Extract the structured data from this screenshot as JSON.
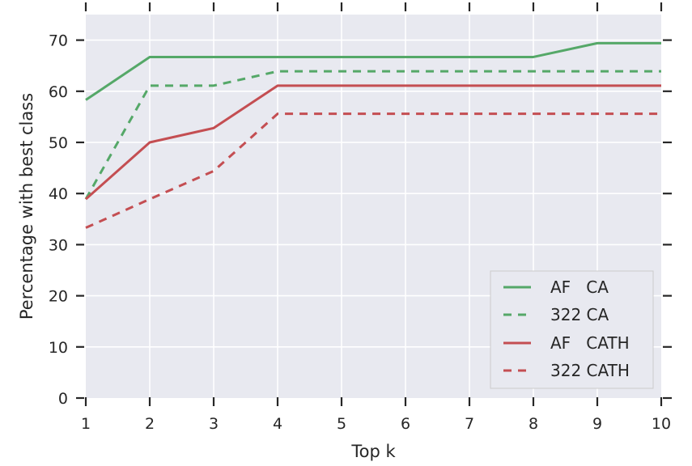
{
  "chart_data": {
    "type": "line",
    "title": "",
    "xlabel": "Top k",
    "ylabel": "Percentage with best class",
    "x": [
      1,
      2,
      3,
      4,
      5,
      6,
      7,
      8,
      9,
      10
    ],
    "xlim": [
      1,
      10
    ],
    "ylim": [
      0,
      75
    ],
    "xticks": [
      1,
      2,
      3,
      4,
      5,
      6,
      7,
      8,
      9,
      10
    ],
    "yticks": [
      0,
      10,
      20,
      30,
      40,
      50,
      60,
      70
    ],
    "grid": true,
    "legend_position": "bottom-right",
    "background": "#e8e9f0",
    "series": [
      {
        "name": "AF   CA",
        "color": "#55a868",
        "dash": "solid",
        "values": [
          58.3,
          66.7,
          66.7,
          66.7,
          66.7,
          66.7,
          66.7,
          66.7,
          69.4,
          69.4
        ]
      },
      {
        "name": "322 CA",
        "color": "#55a868",
        "dash": "dashed",
        "values": [
          38.9,
          61.1,
          61.1,
          63.9,
          63.9,
          63.9,
          63.9,
          63.9,
          63.9,
          63.9
        ]
      },
      {
        "name": "AF   CATH",
        "color": "#c44e52",
        "dash": "solid",
        "values": [
          38.9,
          50.0,
          52.8,
          61.1,
          61.1,
          61.1,
          61.1,
          61.1,
          61.1,
          61.1
        ]
      },
      {
        "name": "322 CATH",
        "color": "#c44e52",
        "dash": "dashed",
        "values": [
          33.3,
          38.9,
          44.4,
          55.6,
          55.6,
          55.6,
          55.6,
          55.6,
          55.6,
          55.6
        ]
      }
    ]
  }
}
